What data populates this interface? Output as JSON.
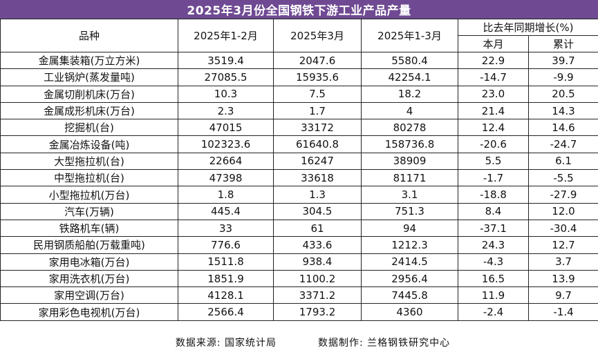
{
  "title": "2025年3月份全国钢铁下游工业产品产量",
  "headers": {
    "variety": "品种",
    "jan_feb": "2025年1-2月",
    "march": "2025年3月",
    "jan_mar": "2025年1-3月",
    "yoy_group": "比去年同期增长(%)",
    "month": "本月",
    "cumulative": "累计"
  },
  "rows": [
    {
      "name": "金属集装箱(万立方米)",
      "jan_feb": "3519.4",
      "march": "2047.6",
      "jan_mar": "5580.4",
      "month": "22.9",
      "cum": "39.7"
    },
    {
      "name": "工业锅炉(蒸发量吨)",
      "jan_feb": "27085.5",
      "march": "15935.6",
      "jan_mar": "42254.1",
      "month": "-14.7",
      "cum": "-9.9"
    },
    {
      "name": "金属切削机床(万台)",
      "jan_feb": "10.3",
      "march": "7.5",
      "jan_mar": "18.2",
      "month": "23.0",
      "cum": "20.5"
    },
    {
      "name": "金属成形机床(万台)",
      "jan_feb": "2.3",
      "march": "1.7",
      "jan_mar": "4",
      "month": "21.4",
      "cum": "14.3"
    },
    {
      "name": "挖掘机(台)",
      "jan_feb": "47015",
      "march": "33172",
      "jan_mar": "80278",
      "month": "12.4",
      "cum": "14.6"
    },
    {
      "name": "金属冶炼设备(吨)",
      "jan_feb": "102323.6",
      "march": "61640.8",
      "jan_mar": "158736.8",
      "month": "-20.6",
      "cum": "-24.7"
    },
    {
      "name": "大型拖拉机(台)",
      "jan_feb": "22664",
      "march": "16247",
      "jan_mar": "38909",
      "month": "5.5",
      "cum": "6.1"
    },
    {
      "name": "中型拖拉机(台)",
      "jan_feb": "47398",
      "march": "33618",
      "jan_mar": "81171",
      "month": "-1.7",
      "cum": "-5.5"
    },
    {
      "name": "小型拖拉机(万台)",
      "jan_feb": "1.8",
      "march": "1.3",
      "jan_mar": "3.1",
      "month": "-18.8",
      "cum": "-27.9"
    },
    {
      "name": "汽车(万辆)",
      "jan_feb": "445.4",
      "march": "304.5",
      "jan_mar": "751.3",
      "month": "8.4",
      "cum": "12.0"
    },
    {
      "name": "铁路机车(辆)",
      "jan_feb": "33",
      "march": "61",
      "jan_mar": "94",
      "month": "-37.1",
      "cum": "-30.4"
    },
    {
      "name": "民用钢质船舶(万载重吨)",
      "jan_feb": "776.6",
      "march": "433.6",
      "jan_mar": "1212.3",
      "month": "24.3",
      "cum": "12.7"
    },
    {
      "name": "家用电冰箱(万台)",
      "jan_feb": "1511.8",
      "march": "938.4",
      "jan_mar": "2414.5",
      "month": "-4.3",
      "cum": "3.7"
    },
    {
      "name": "家用洗衣机(万台)",
      "jan_feb": "1851.9",
      "march": "1100.2",
      "jan_mar": "2956.4",
      "month": "16.5",
      "cum": "13.9"
    },
    {
      "name": "家用空调(万台)",
      "jan_feb": "4128.1",
      "march": "3371.2",
      "jan_mar": "7445.8",
      "month": "11.9",
      "cum": "9.7"
    },
    {
      "name": "家用彩色电视机(万台)",
      "jan_feb": "2566.4",
      "march": "1793.2",
      "jan_mar": "4360",
      "month": "-2.4",
      "cum": "-1.4"
    }
  ],
  "footer": {
    "source": "数据来源: 国家统计局",
    "maker": "数据制作: 兰格钢铁研究中心"
  },
  "colors": {
    "title_bg": "#6f4a92",
    "title_text": "#ffffff"
  }
}
